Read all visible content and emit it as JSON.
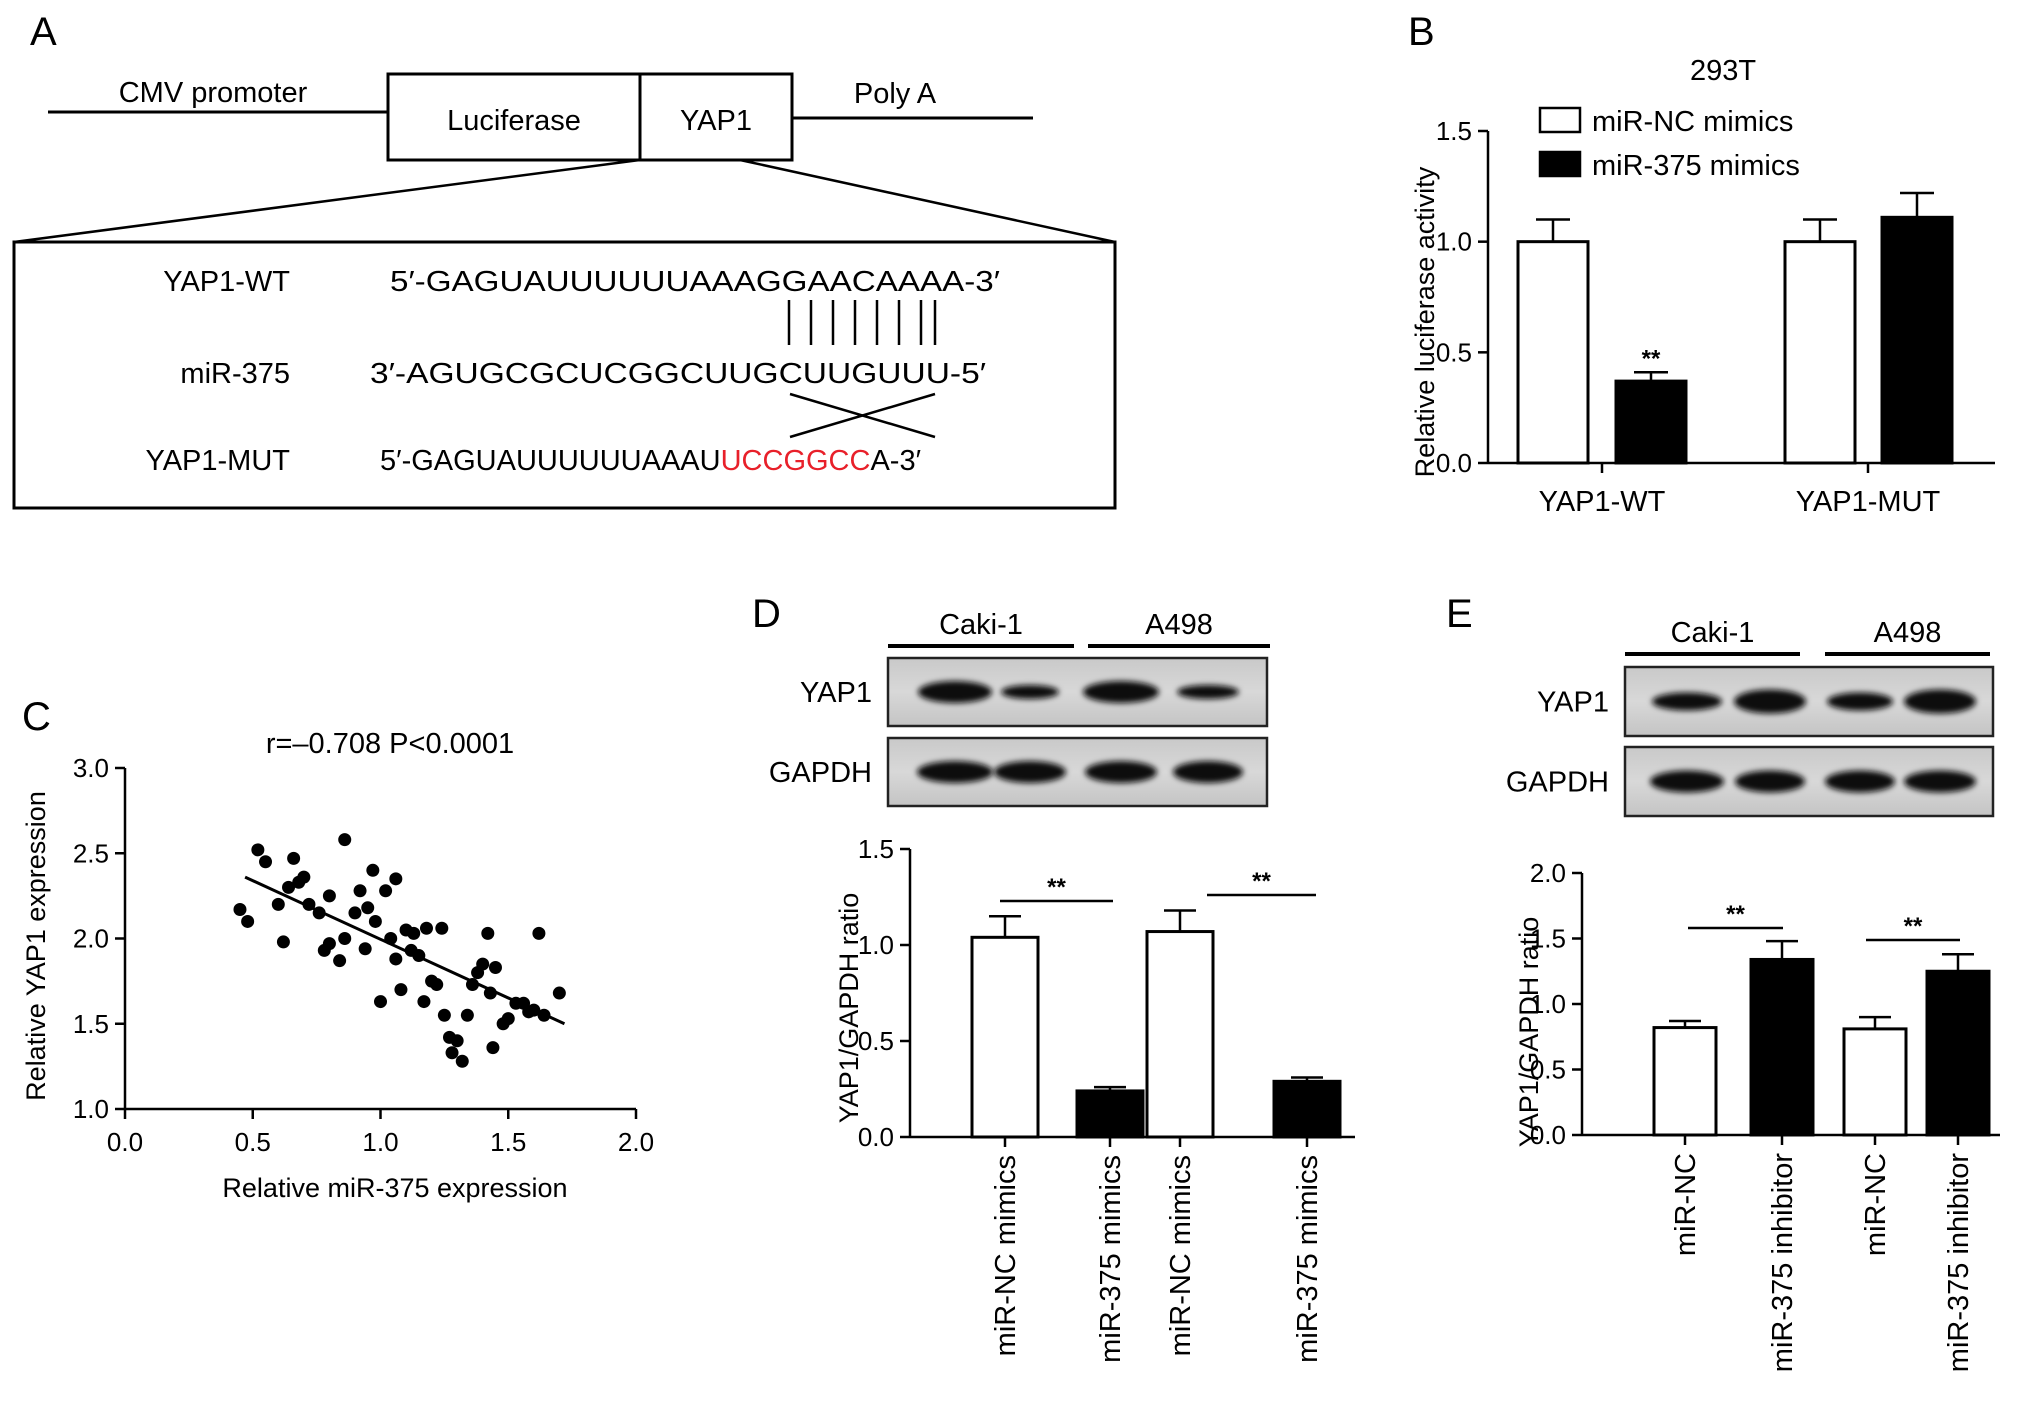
{
  "panel_A": {
    "letter": "A",
    "construct": {
      "promoter": "CMV promoter",
      "reporter": "Luciferase",
      "insert": "YAP1",
      "polyA": "Poly A"
    },
    "rows": [
      {
        "label": "YAP1-WT",
        "seq": "5′-GAGUAUUUUUUAAAGGAACAAAA-3′"
      },
      {
        "label": "miR-375",
        "seq": "3′-AGUGCGCUCGGCUUGCUUGUUU-5′"
      },
      {
        "label": "YAP1-MUT",
        "seq_prefix": "5′-GAGUAUUUUUUAAAU",
        "seq_mut": "UCCGGCC",
        "seq_suffix": "A-3′"
      }
    ],
    "mut_color": "#e8202a"
  },
  "panel_B": {
    "letter": "B",
    "chart_data": {
      "type": "bar",
      "title": "293T",
      "ylabel": "Relative luciferase activity",
      "categories": [
        "YAP1-WT",
        "YAP1-MUT"
      ],
      "series": [
        {
          "name": "miR-NC mimics",
          "values": [
            1.0,
            1.0
          ],
          "errors": [
            0.1,
            0.1
          ],
          "fill": "#ffffff"
        },
        {
          "name": "miR-375 mimics",
          "values": [
            0.37,
            1.11
          ],
          "errors": [
            0.04,
            0.11
          ],
          "fill": "#000000"
        }
      ],
      "ylim": [
        0,
        1.5
      ],
      "yticks": [
        "0.0",
        "0.5",
        "1.0",
        "1.5"
      ],
      "significance": "**",
      "legend": "top-left"
    }
  },
  "panel_C": {
    "letter": "C",
    "chart_data": {
      "type": "scatter",
      "annotation": "r=–0.708 P<0.0001",
      "xlabel": "Relative miR-375 expression",
      "ylabel": "Relative YAP1 expression",
      "xlim": [
        0,
        2.0
      ],
      "ylim": [
        1.0,
        3.0
      ],
      "xticks": [
        "0.0",
        "0.5",
        "1.0",
        "1.5",
        "2.0"
      ],
      "yticks": [
        "1.0",
        "1.5",
        "2.0",
        "2.5",
        "3.0"
      ],
      "fit_line": [
        [
          0.47,
          2.36
        ],
        [
          1.72,
          1.5
        ]
      ],
      "points": [
        [
          0.45,
          2.17
        ],
        [
          0.48,
          2.1
        ],
        [
          0.52,
          2.52
        ],
        [
          0.55,
          2.45
        ],
        [
          0.6,
          2.2
        ],
        [
          0.62,
          1.98
        ],
        [
          0.64,
          2.3
        ],
        [
          0.66,
          2.47
        ],
        [
          0.68,
          2.33
        ],
        [
          0.7,
          2.36
        ],
        [
          0.72,
          2.2
        ],
        [
          0.76,
          2.15
        ],
        [
          0.78,
          1.93
        ],
        [
          0.8,
          1.97
        ],
        [
          0.8,
          2.25
        ],
        [
          0.84,
          1.87
        ],
        [
          0.86,
          2.0
        ],
        [
          0.86,
          2.58
        ],
        [
          0.9,
          2.15
        ],
        [
          0.92,
          2.28
        ],
        [
          0.94,
          1.94
        ],
        [
          0.95,
          2.18
        ],
        [
          0.97,
          2.4
        ],
        [
          0.98,
          2.1
        ],
        [
          1.0,
          1.63
        ],
        [
          1.02,
          2.28
        ],
        [
          1.04,
          2.0
        ],
        [
          1.06,
          1.88
        ],
        [
          1.06,
          2.35
        ],
        [
          1.08,
          1.7
        ],
        [
          1.1,
          2.05
        ],
        [
          1.12,
          1.93
        ],
        [
          1.13,
          2.03
        ],
        [
          1.15,
          1.9
        ],
        [
          1.17,
          1.63
        ],
        [
          1.18,
          2.06
        ],
        [
          1.2,
          1.75
        ],
        [
          1.22,
          1.73
        ],
        [
          1.24,
          2.06
        ],
        [
          1.25,
          1.55
        ],
        [
          1.27,
          1.42
        ],
        [
          1.28,
          1.33
        ],
        [
          1.3,
          1.4
        ],
        [
          1.32,
          1.28
        ],
        [
          1.34,
          1.55
        ],
        [
          1.36,
          1.73
        ],
        [
          1.38,
          1.8
        ],
        [
          1.4,
          1.85
        ],
        [
          1.42,
          2.03
        ],
        [
          1.43,
          1.68
        ],
        [
          1.45,
          1.83
        ],
        [
          1.48,
          1.5
        ],
        [
          1.5,
          1.53
        ],
        [
          1.53,
          1.62
        ],
        [
          1.56,
          1.62
        ],
        [
          1.58,
          1.57
        ],
        [
          1.6,
          1.58
        ],
        [
          1.62,
          2.03
        ],
        [
          1.64,
          1.55
        ],
        [
          1.7,
          1.68
        ],
        [
          1.44,
          1.36
        ]
      ]
    }
  },
  "panel_D": {
    "letter": "D",
    "blot": {
      "groups": [
        "Caki-1",
        "A498"
      ],
      "rows": [
        "YAP1",
        "GAPDH"
      ]
    },
    "chart_data": {
      "type": "bar",
      "ylabel": "YAP1/GAPDH ratio",
      "categories": [
        "miR-NC mimics",
        "miR-375 mimics",
        "miR-NC mimics",
        "miR-375 mimics"
      ],
      "values": [
        1.04,
        0.24,
        1.07,
        0.29
      ],
      "errors": [
        0.11,
        0.02,
        0.11,
        0.02
      ],
      "fills": [
        "#ffffff",
        "#000000",
        "#ffffff",
        "#000000"
      ],
      "ylim": [
        0,
        1.5
      ],
      "yticks": [
        "0.0",
        "0.5",
        "1.0",
        "1.5"
      ],
      "significance": "**"
    }
  },
  "panel_E": {
    "letter": "E",
    "blot": {
      "groups": [
        "Caki-1",
        "A498"
      ],
      "rows": [
        "YAP1",
        "GAPDH"
      ]
    },
    "chart_data": {
      "type": "bar",
      "ylabel": "YAP1/GAPDH ratio",
      "categories": [
        "miR-NC",
        "miR-375 inhibitor",
        "miR-NC",
        "miR-375 inhibitor"
      ],
      "values": [
        0.82,
        1.34,
        0.81,
        1.25
      ],
      "errors": [
        0.05,
        0.14,
        0.09,
        0.13
      ],
      "fills": [
        "#ffffff",
        "#000000",
        "#ffffff",
        "#000000"
      ],
      "ylim": [
        0,
        2.0
      ],
      "yticks": [
        "0.0",
        "0.5",
        "1.0",
        "1.5",
        "2.0"
      ],
      "significance": "**"
    }
  }
}
